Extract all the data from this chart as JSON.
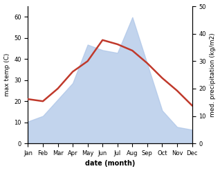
{
  "months": [
    "Jan",
    "Feb",
    "Mar",
    "Apr",
    "May",
    "Jun",
    "Jul",
    "Aug",
    "Sep",
    "Oct",
    "Nov",
    "Dec"
  ],
  "temperature": [
    21,
    20,
    26,
    34,
    39,
    49,
    47,
    44,
    38,
    31,
    25,
    18
  ],
  "precipitation": [
    8,
    10,
    16,
    22,
    36,
    34,
    33,
    46,
    29,
    12,
    6,
    5
  ],
  "temp_ylim": [
    0,
    65
  ],
  "precip_ylim": [
    0,
    50
  ],
  "temp_yticks": [
    0,
    10,
    20,
    30,
    40,
    50,
    60
  ],
  "precip_yticks": [
    0,
    10,
    20,
    30,
    40,
    50
  ],
  "xlabel": "date (month)",
  "ylabel_left": "max temp (C)",
  "ylabel_right": "med. precipitation (kg/m2)",
  "line_color": "#c0392b",
  "fill_color": "#aec6e8",
  "fill_alpha": 0.75,
  "line_width": 1.8,
  "background_color": "#ffffff"
}
